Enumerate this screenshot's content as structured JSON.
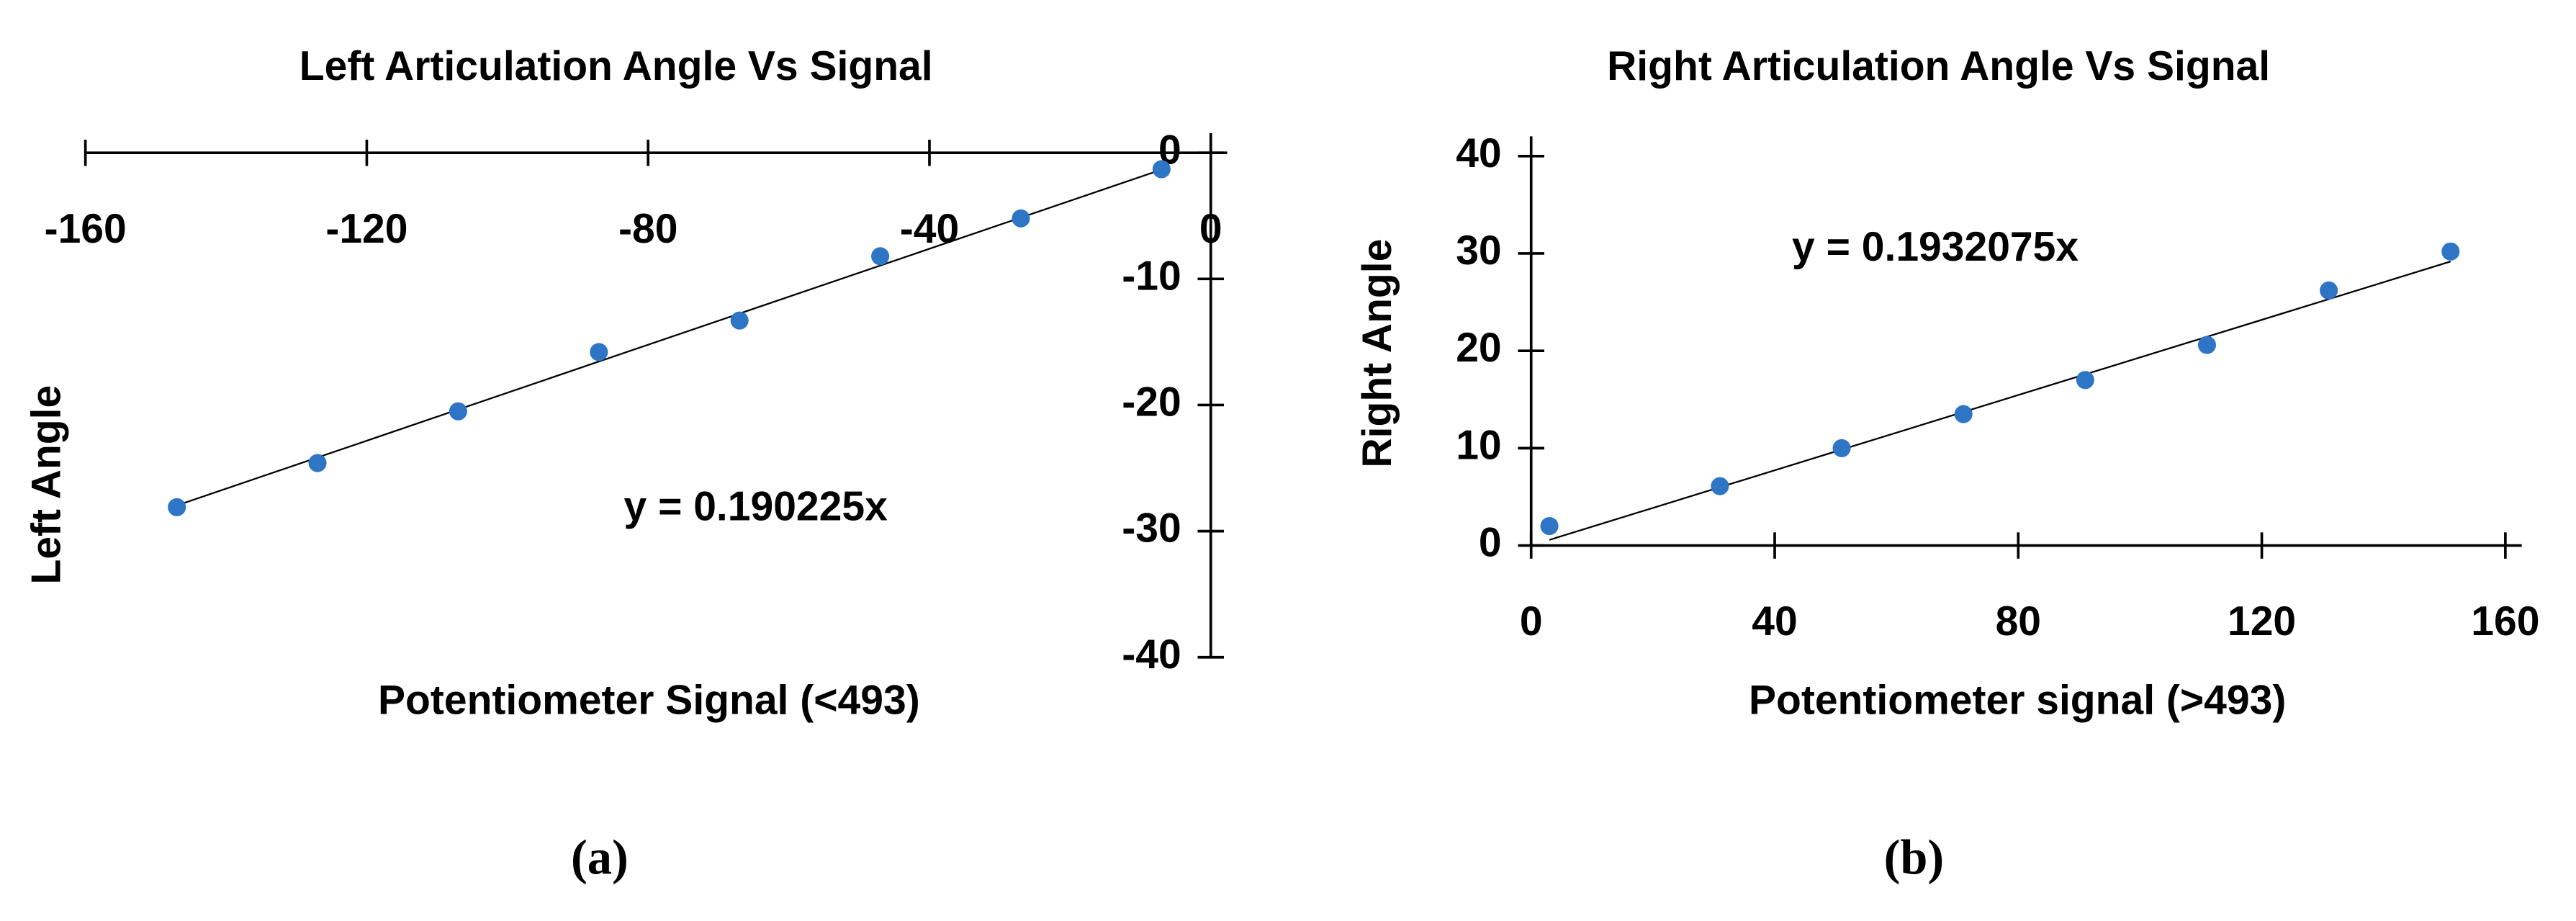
{
  "chart_data": [
    {
      "type": "scatter",
      "title": "Left Articulation Angle Vs Signal",
      "x_label": "Potentiometer Signal (<493)",
      "y_label": "Left Angle",
      "x": [
        -147,
        -127,
        -107,
        -87,
        -67,
        -47,
        -27,
        -7
      ],
      "series": [
        {
          "color": "#2e75c6",
          "values": [
            -28.1,
            -24.6,
            -20.5,
            -15.8,
            -13.3,
            -8.2,
            -5.2,
            -1.3
          ]
        }
      ],
      "xlim": [
        -160,
        0
      ],
      "xticks": [
        -160,
        -120,
        -80,
        -40,
        0
      ],
      "ylim": [
        -40,
        0
      ],
      "yticks": [
        -40,
        -30,
        -20,
        -10,
        0
      ],
      "trendline": {
        "label": "y = 0.190225x",
        "slope": 0.190225
      },
      "caption": "(a)"
    },
    {
      "type": "scatter",
      "title": "Right Articulation Angle Vs Signal",
      "x_label": "Potentiometer signal (>493)",
      "y_label": "Right Angle",
      "x": [
        3,
        31,
        51,
        71,
        91,
        111,
        131,
        151
      ],
      "series": [
        {
          "color": "#2e75c6",
          "values": [
            2.0,
            6.1,
            10.0,
            13.5,
            17.0,
            20.6,
            26.2,
            30.2
          ]
        }
      ],
      "xlim": [
        0,
        160
      ],
      "xticks": [
        0,
        40,
        80,
        120,
        160
      ],
      "ylim": [
        0,
        40
      ],
      "yticks": [
        0,
        10,
        20,
        30,
        40
      ],
      "trendline": {
        "label": "y = 0.1932075x",
        "slope": 0.1932075
      },
      "caption": "(b)"
    }
  ]
}
